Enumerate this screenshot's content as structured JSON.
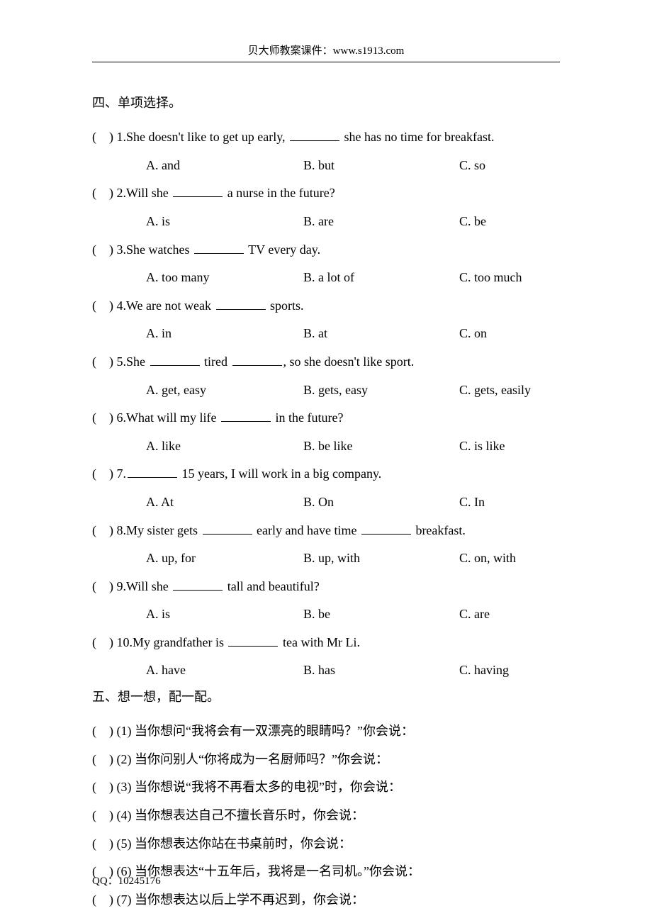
{
  "header": "贝大师教案课件：www.s1913.com",
  "sectionA_title": "四、单项选择。",
  "questions": [
    {
      "marker": "(    ) 1. ",
      "pre": "She doesn't like to get up early, ",
      "post": " she has no time for breakfast.",
      "A": "A. and",
      "B": "B. but",
      "C": "C. so"
    },
    {
      "marker": "(    ) 2. ",
      "pre": "Will she ",
      "post": " a nurse in the future?",
      "A": "A. is",
      "B": "B. are",
      "C": "C. be"
    },
    {
      "marker": "(    ) 3. ",
      "pre": "She watches ",
      "post": " TV every day.",
      "A": "A. too many",
      "B": "B. a lot of",
      "C": "C. too much"
    },
    {
      "marker": "(    ) 4. ",
      "pre": "We are not weak ",
      "post": " sports.",
      "A": "A. in",
      "B": "B. at",
      "C": "C. on"
    },
    {
      "marker": "(    ) 5. ",
      "pre": "She ",
      "mid": " tired ",
      "post": ", so she doesn't like sport.",
      "A": "A. get, easy",
      "B": "B. gets, easy",
      "C": "C. gets, easily"
    },
    {
      "marker": "(    ) 6. ",
      "pre": "What will my life ",
      "post": " in the future?",
      "A": "A. like",
      "B": "B. be like",
      "C": "C. is like"
    },
    {
      "marker": "(    ) 7. ",
      "pre": "",
      "post": " 15 years, I will work in a big company.",
      "A": "A. At",
      "B": "B. On",
      "C": "C. In"
    },
    {
      "marker": "(    ) 8. ",
      "pre": "My sister gets ",
      "mid": " early and have time ",
      "post": " breakfast.",
      "A": "A. up, for",
      "B": "B. up, with",
      "C": "C. on, with"
    },
    {
      "marker": "(    ) 9. ",
      "pre": "Will she ",
      "post": " tall and beautiful?",
      "A": "A. is",
      "B": "B. be",
      "C": "C. are"
    },
    {
      "marker": "(    ) 10. ",
      "pre": "My grandfather is ",
      "post": " tea with Mr Li.",
      "A": "A. have",
      "B": "B. has",
      "C": "C. having"
    }
  ],
  "sectionB_title": "五、想一想，配一配。",
  "matches": [
    "(    ) (1)  当你想问“我将会有一双漂亮的眼睛吗？”你会说：",
    "(    ) (2)  当你问别人“你将成为一名厨师吗？”你会说：",
    "(    ) (3)  当你想说“我将不再看太多的电视”时，你会说：",
    "(    ) (4)  当你想表达自己不擅长音乐时，你会说：",
    "(    ) (5)  当你想表达你站在书桌前时，你会说：",
    "(    ) (6)  当你想表达“十五年后，我将是一名司机。”你会说：",
    "(    ) (7)  当你想表达以后上学不再迟到，你会说："
  ],
  "footer": "QQ：10245176"
}
